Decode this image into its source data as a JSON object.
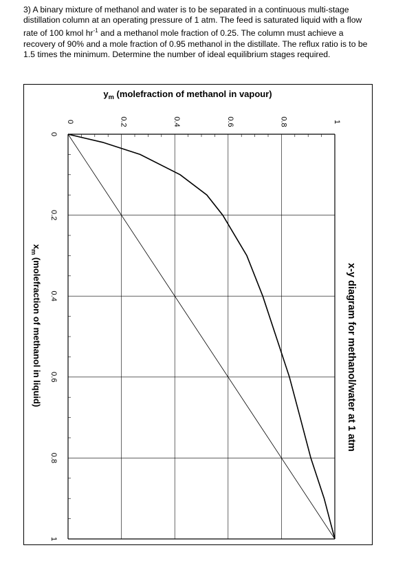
{
  "problem": {
    "text_before_sup": "3) A binary mixture of methanol and water is to be separated in a continuous multi-stage distillation column at an operating pressure of 1 atm.  The feed is saturated liquid with a flow rate of 100 kmol hr",
    "sup": "-1",
    "text_after_sup": " and a methanol mole fraction of 0.25.  The column must achieve a recovery of 90% and a mole fraction of 0.95 methanol in the distillate. The reflux ratio is to be 1.5 times the minimum. Determine the number of ideal equilibrium stages required."
  },
  "chart_data": {
    "type": "line",
    "title": "x-y diagram for methanol/water at 1 atm",
    "ylabel_main": "y",
    "ylabel_sub": "m",
    "ylabel_rest": " (molefraction of methanol in vapour)",
    "xlabel_main": "x",
    "xlabel_sub": "m",
    "xlabel_rest": " (molefraction of methanol in liquid)",
    "xlim": [
      0,
      1
    ],
    "ylim": [
      0,
      1
    ],
    "x_ticks": [
      "0",
      "0.2",
      "0.4",
      "0.6",
      "0.8",
      "1"
    ],
    "y_ticks": [
      "0",
      "0.2",
      "0.4",
      "0.6",
      "0.8",
      "1"
    ],
    "grid": true,
    "rotated": "90deg-clockwise",
    "series": [
      {
        "x": [
          0,
          0.02,
          0.05,
          0.1,
          0.15,
          0.2,
          0.3,
          0.4,
          0.5,
          0.6,
          0.7,
          0.8,
          0.9,
          0.95,
          1.0
        ],
        "y": [
          0,
          0.13,
          0.27,
          0.42,
          0.52,
          0.58,
          0.67,
          0.73,
          0.78,
          0.83,
          0.87,
          0.91,
          0.96,
          0.98,
          1.0
        ]
      },
      {
        "x": [
          0,
          1
        ],
        "y": [
          0,
          1
        ]
      }
    ]
  }
}
